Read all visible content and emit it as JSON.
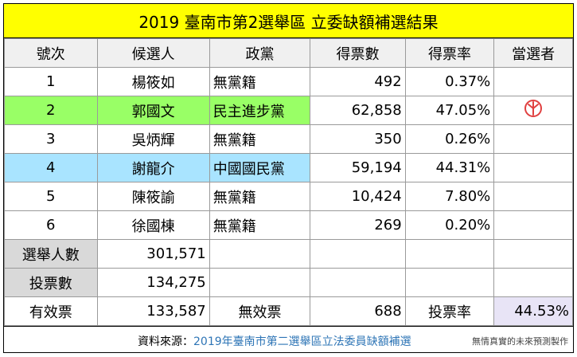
{
  "title": "2019 臺南市第2選舉區  立委缺額補選結果",
  "headers": [
    "號次",
    "候選人",
    "政黨",
    "得票數",
    "得票率",
    "當選者"
  ],
  "candidates": [
    {
      "no": "1",
      "name": "楊筱如",
      "party": "無黨籍",
      "votes": "492",
      "rate": "0.37%",
      "elected": false
    },
    {
      "no": "2",
      "name": "郭國文",
      "party": "民主進步黨",
      "votes": "62,858",
      "rate": "47.05%",
      "elected": true
    },
    {
      "no": "3",
      "name": "吳炳輝",
      "party": "無黨籍",
      "votes": "350",
      "rate": "0.26%",
      "elected": false
    },
    {
      "no": "4",
      "name": "謝龍介",
      "party": "中國國民黨",
      "votes": "59,194",
      "rate": "44.31%",
      "elected": false
    },
    {
      "no": "5",
      "name": "陳筱諭",
      "party": "無黨籍",
      "votes": "10,424",
      "rate": "7.80%",
      "elected": false
    },
    {
      "no": "6",
      "name": "徐國棟",
      "party": "無黨籍",
      "votes": "269",
      "rate": "0.20%",
      "elected": false
    }
  ],
  "summary": {
    "electorate_label": "選舉人數",
    "electorate_value": "301,571",
    "turnout_votes_label": "投票數",
    "turnout_votes_value": "134,275",
    "valid_label": "有效票",
    "valid_value": "133,587",
    "invalid_label": "無效票",
    "invalid_value": "688",
    "turnout_rate_label": "投票率",
    "turnout_rate_value": "44.53%"
  },
  "footer": {
    "source_label": "資料來源：",
    "source_link": "2019年臺南市第二選舉區立法委員缺額補選",
    "credit": "無情真實的未來預測製作"
  },
  "colors": {
    "title_bg": "#ffff00",
    "dpp": "#99ff66",
    "kmt": "#a9e4ff",
    "stamp": "#e04040"
  },
  "stamp_icon": "elected-stamp-icon"
}
